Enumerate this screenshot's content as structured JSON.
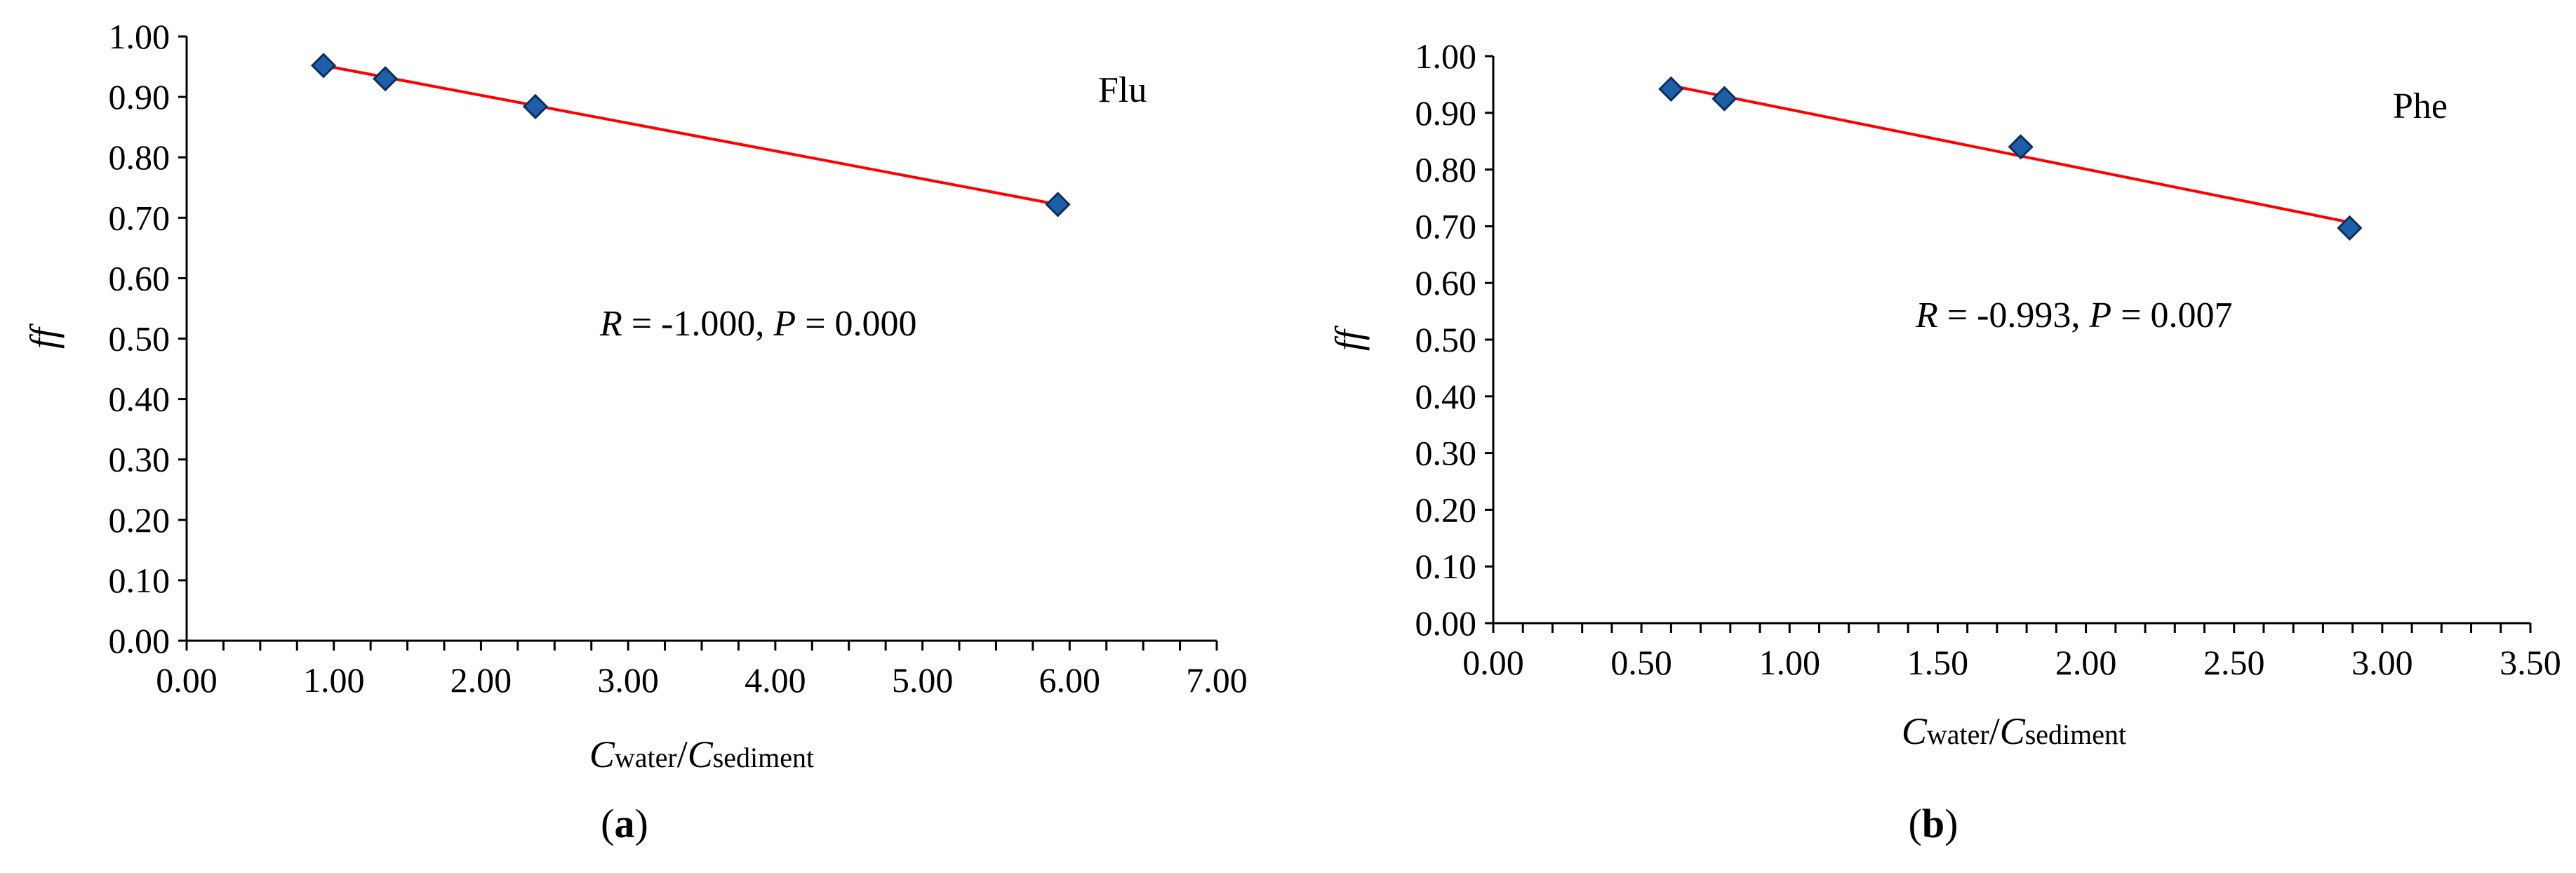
{
  "chart_data": [
    {
      "type": "scatter",
      "panel_label": "(a)",
      "panel_label_parts": [
        "(",
        "a",
        ")"
      ],
      "series_label": "Flu",
      "annotation": {
        "r_symbol": "R",
        "r_text": " = -1.000, ",
        "p_symbol": "P",
        "p_text": " = 0.000"
      },
      "ylabel": "ff",
      "xlabel": {
        "c1": "C",
        "s1": "water",
        "slash": "/",
        "c2": "C",
        "s2": "sediment"
      },
      "xlim": [
        0,
        7
      ],
      "ylim": [
        0,
        1
      ],
      "xticks": [
        "0.00",
        "1.00",
        "2.00",
        "3.00",
        "4.00",
        "5.00",
        "6.00",
        "7.00"
      ],
      "yticks": [
        "0.00",
        "0.10",
        "0.20",
        "0.30",
        "0.40",
        "0.50",
        "0.60",
        "0.70",
        "0.80",
        "0.90",
        "1.00"
      ],
      "x_minor_step": 0.25,
      "points": [
        {
          "x": 0.93,
          "y": 0.952
        },
        {
          "x": 1.35,
          "y": 0.93
        },
        {
          "x": 2.37,
          "y": 0.884
        },
        {
          "x": 5.92,
          "y": 0.722
        }
      ],
      "trendline": [
        {
          "x": 0.93,
          "y": 0.952
        },
        {
          "x": 5.92,
          "y": 0.722
        }
      ],
      "grid": false
    },
    {
      "type": "scatter",
      "panel_label": "(b)",
      "panel_label_parts": [
        "(",
        "b",
        ")"
      ],
      "series_label": "Phe",
      "annotation": {
        "r_symbol": "R",
        "r_text": " = -0.993, ",
        "p_symbol": "P",
        "p_text": " = 0.007"
      },
      "ylabel": "ff",
      "xlabel": {
        "c1": "C",
        "s1": "water",
        "slash": "/",
        "c2": "C",
        "s2": "sediment"
      },
      "xlim": [
        0,
        3.5
      ],
      "ylim": [
        0,
        1
      ],
      "xticks": [
        "0.00",
        "0.50",
        "1.00",
        "1.50",
        "2.00",
        "2.50",
        "3.00",
        "3.50"
      ],
      "yticks": [
        "0.00",
        "0.10",
        "0.20",
        "0.30",
        "0.40",
        "0.50",
        "0.60",
        "0.70",
        "0.80",
        "0.90",
        "1.00"
      ],
      "x_minor_step": 0.1,
      "points": [
        {
          "x": 0.6,
          "y": 0.942
        },
        {
          "x": 0.78,
          "y": 0.925
        },
        {
          "x": 1.78,
          "y": 0.84
        },
        {
          "x": 2.89,
          "y": 0.697
        }
      ],
      "trendline": [
        {
          "x": 0.6,
          "y": 0.948
        },
        {
          "x": 2.89,
          "y": 0.707
        }
      ],
      "grid": false
    }
  ],
  "colors": {
    "marker_fill": "#1f5ea8",
    "marker_stroke": "#0a2f5e",
    "trendline": "#ff0000",
    "axis": "#000000"
  }
}
